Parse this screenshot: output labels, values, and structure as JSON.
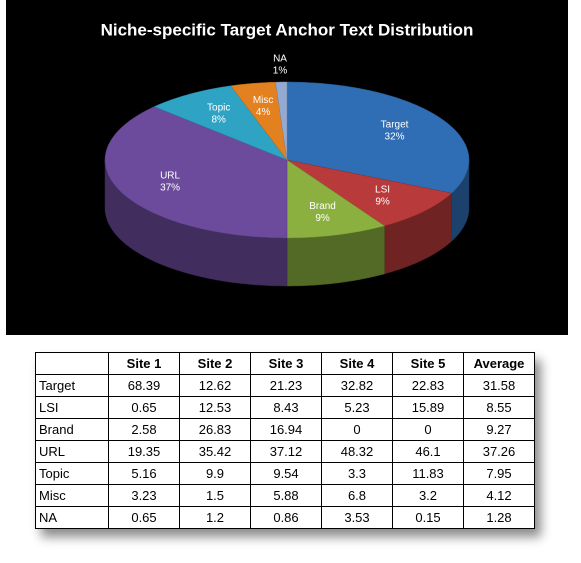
{
  "chart_data": {
    "type": "pie",
    "title": "Niche-specific Target Anchor Text Distribution",
    "categories": [
      "Target",
      "LSI",
      "Brand",
      "URL",
      "Topic",
      "Misc",
      "NA"
    ],
    "values": [
      32,
      9,
      9,
      37,
      8,
      4,
      1
    ],
    "value_labels": [
      "32%",
      "9%",
      "9%",
      "37%",
      "8%",
      "4%",
      "1%"
    ],
    "colors": [
      "#2f6db4",
      "#b93a3a",
      "#8bb040",
      "#6c4b9c",
      "#2fa3c4",
      "#e3801f",
      "#93aad2"
    ]
  },
  "table": {
    "header": [
      "Site 1",
      "Site 2",
      "Site 3",
      "Site 4",
      "Site 5",
      "Average"
    ],
    "rows": [
      [
        "Target",
        68.39,
        12.62,
        21.23,
        32.82,
        22.83,
        31.58
      ],
      [
        "LSI",
        0.65,
        12.53,
        8.43,
        5.23,
        15.89,
        8.55
      ],
      [
        "Brand",
        2.58,
        26.83,
        16.94,
        0,
        0,
        9.27
      ],
      [
        "URL",
        19.35,
        35.42,
        37.12,
        48.32,
        46.1,
        37.26
      ],
      [
        "Topic",
        5.16,
        9.9,
        9.54,
        3.3,
        11.83,
        7.95
      ],
      [
        "Misc",
        3.23,
        1.5,
        5.88,
        6.8,
        3.2,
        4.12
      ],
      [
        "NA",
        0.65,
        1.2,
        0.86,
        3.53,
        0.15,
        1.28
      ]
    ]
  }
}
